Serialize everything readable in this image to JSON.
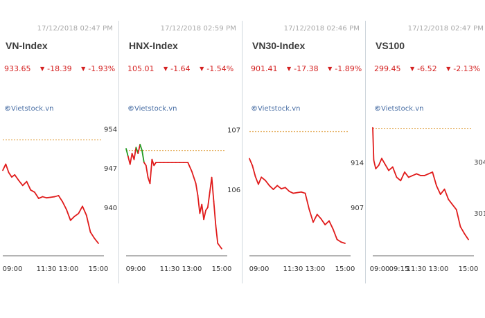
{
  "panels": [
    {
      "timestamp": "17/12/2018 02:47 PM",
      "title": "VN-Index",
      "value": "933.65",
      "change": "-18.39",
      "percent": "-1.93%",
      "brand": "Vietstock.vn"
    },
    {
      "timestamp": "17/12/2018 02:59 PM",
      "title": "HNX-Index",
      "value": "105.01",
      "change": "-1.64",
      "percent": "-1.54%",
      "brand": "Vietstock.vn"
    },
    {
      "timestamp": "17/12/2018 02:46 PM",
      "title": "VN30-Index",
      "value": "901.41",
      "change": "-17.38",
      "percent": "-1.89%",
      "brand": "Vietstock.vn"
    },
    {
      "timestamp": "17/12/2018 02:47 PM",
      "title": "VS100",
      "value": "299.45",
      "change": "-6.52",
      "percent": "-2.13%",
      "brand": "Vietstock.vn"
    }
  ],
  "colors": {
    "down": "#e01b1b",
    "up": "#1f9a1f",
    "reference": "#e0a040",
    "axis": "#888888",
    "divider": "#cfd6dc"
  },
  "chart_data": [
    {
      "type": "line",
      "title": "VN-Index",
      "x_ticks": [
        "09:00",
        "11:30",
        "13:00",
        "15:00"
      ],
      "y_ticks": [
        954,
        947,
        940
      ],
      "ylim": [
        932,
        956
      ],
      "reference": 952.04,
      "x": [
        0,
        3,
        6,
        9,
        12,
        16,
        20,
        24,
        28,
        32,
        36,
        40,
        44,
        48,
        52,
        56,
        60,
        64,
        68,
        72,
        76,
        80,
        84,
        88,
        92,
        96
      ],
      "values": [
        946.6,
        947.7,
        946.2,
        945.4,
        945.8,
        944.8,
        943.9,
        944.6,
        943.1,
        942.7,
        941.6,
        941.9,
        941.7,
        941.8,
        941.9,
        942.1,
        941.0,
        939.6,
        937.7,
        938.4,
        938.9,
        940.2,
        938.6,
        935.6,
        934.5,
        933.6
      ],
      "series_color": "down"
    },
    {
      "type": "line",
      "title": "HNX-Index",
      "x_ticks": [
        "09:00",
        "11:30",
        "13:00",
        "15:00"
      ],
      "y_ticks": [
        107,
        106
      ],
      "ylim": [
        104.95,
        107.2
      ],
      "reference": 106.65,
      "x": [
        0,
        2,
        4,
        6,
        8,
        10,
        12,
        14,
        16,
        18,
        20,
        22,
        24,
        26,
        28,
        30,
        34,
        38,
        42,
        46,
        50,
        54,
        58,
        62,
        66,
        70,
        72,
        74,
        76,
        78,
        80,
        82,
        84,
        86,
        88,
        90,
        92,
        96
      ],
      "values": [
        106.68,
        106.55,
        106.42,
        106.6,
        106.5,
        106.7,
        106.6,
        106.75,
        106.65,
        106.45,
        106.4,
        106.2,
        106.1,
        106.5,
        106.4,
        106.45,
        106.45,
        106.45,
        106.45,
        106.45,
        106.45,
        106.45,
        106.45,
        106.45,
        106.3,
        106.1,
        105.9,
        105.6,
        105.75,
        105.5,
        105.65,
        105.7,
        105.95,
        106.2,
        105.8,
        105.4,
        105.1,
        105.01
      ],
      "series_color": "down",
      "up_segment_count": 13
    },
    {
      "type": "line",
      "title": "VN30-Index",
      "x_ticks": [
        "09:00",
        "11:30",
        "13:00",
        "15:00"
      ],
      "y_ticks": [
        914,
        907
      ],
      "ylim": [
        900,
        921
      ],
      "reference": 918.79,
      "x": [
        0,
        3,
        6,
        9,
        12,
        16,
        20,
        24,
        28,
        32,
        36,
        40,
        44,
        48,
        52,
        56,
        60,
        64,
        68,
        72,
        76,
        80,
        84,
        88,
        92,
        96
      ],
      "values": [
        914.6,
        913.5,
        911.8,
        910.6,
        911.7,
        911.2,
        910.4,
        909.8,
        910.4,
        909.9,
        910.1,
        909.5,
        909.2,
        909.3,
        909.4,
        909.2,
        906.7,
        904.7,
        905.9,
        905.2,
        904.3,
        904.9,
        903.6,
        902.0,
        901.6,
        901.4
      ],
      "series_color": "down"
    },
    {
      "type": "line",
      "title": "VS100",
      "x_ticks": [
        "09:00",
        "09:15",
        "11:30",
        "13:00",
        "15:00"
      ],
      "y_ticks": [
        304,
        301
      ],
      "ylim": [
        298.7,
        306.6
      ],
      "reference": 305.97,
      "x": [
        0,
        1,
        3,
        6,
        9,
        12,
        16,
        20,
        24,
        28,
        32,
        36,
        40,
        44,
        48,
        52,
        56,
        60,
        64,
        68,
        72,
        76,
        80,
        84,
        88,
        92,
        96
      ],
      "values": [
        306.0,
        304.1,
        303.6,
        303.8,
        304.2,
        303.9,
        303.5,
        303.7,
        303.1,
        302.9,
        303.4,
        303.1,
        303.2,
        303.3,
        303.2,
        303.2,
        303.3,
        303.4,
        302.6,
        302.1,
        302.4,
        301.8,
        301.5,
        301.2,
        300.2,
        299.8,
        299.45
      ],
      "series_color": "down"
    }
  ]
}
